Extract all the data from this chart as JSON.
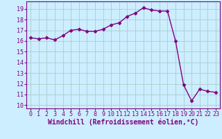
{
  "x": [
    0,
    1,
    2,
    3,
    4,
    5,
    6,
    7,
    8,
    9,
    10,
    11,
    12,
    13,
    14,
    15,
    16,
    17,
    18,
    19,
    20,
    21,
    22,
    23
  ],
  "y": [
    16.3,
    16.2,
    16.3,
    16.1,
    16.5,
    17.0,
    17.1,
    16.9,
    16.9,
    17.1,
    17.5,
    17.7,
    18.3,
    18.6,
    19.1,
    18.9,
    18.8,
    18.8,
    16.0,
    11.9,
    10.4,
    11.5,
    11.3,
    11.2
  ],
  "line_color": "#800080",
  "marker": "D",
  "marker_size": 2.5,
  "linewidth": 1.0,
  "bg_color": "#cceeff",
  "grid_color": "#aacccc",
  "xlabel": "Windchill (Refroidissement éolien,°C)",
  "xlabel_fontsize": 7,
  "xlabel_color": "#800080",
  "ylabel_ticks": [
    10,
    11,
    12,
    13,
    14,
    15,
    16,
    17,
    18,
    19
  ],
  "xtick_labels": [
    "0",
    "1",
    "2",
    "3",
    "4",
    "5",
    "6",
    "7",
    "8",
    "9",
    "10",
    "11",
    "12",
    "13",
    "14",
    "15",
    "16",
    "17",
    "18",
    "19",
    "20",
    "21",
    "22",
    "23"
  ],
  "ylim": [
    9.7,
    19.7
  ],
  "xlim": [
    -0.5,
    23.5
  ],
  "tick_color": "#800080",
  "tick_fontsize": 6,
  "spine_color": "#800080"
}
